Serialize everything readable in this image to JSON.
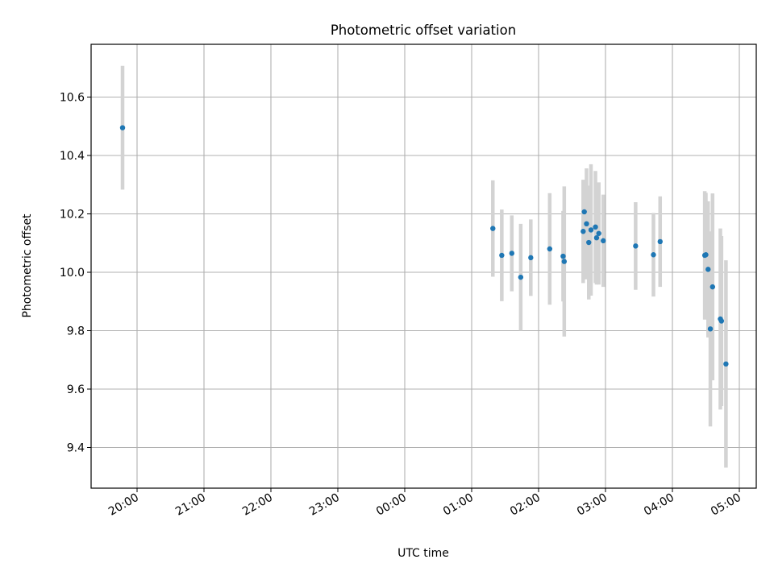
{
  "chart_data": {
    "type": "scatter",
    "title": "Photometric offset variation",
    "xlabel": "UTC time",
    "ylabel": "Photometric offset",
    "grid": true,
    "colors": {
      "points": "#1f77b4",
      "errorbars": "#d3d3d3",
      "grid": "#b0b0b0"
    },
    "x_ticks": [
      "20:00",
      "21:00",
      "22:00",
      "23:00",
      "00:00",
      "01:00",
      "02:00",
      "03:00",
      "04:00",
      "05:00"
    ],
    "y_ticks": [
      "9.4",
      "9.6",
      "9.8",
      "10.0",
      "10.2",
      "10.4",
      "10.6"
    ],
    "points": [
      {
        "t": "19:47",
        "y": 10.495,
        "err": 0.212
      },
      {
        "t": "01:19",
        "y": 10.15,
        "err": 0.165
      },
      {
        "t": "01:27",
        "y": 10.058,
        "err": 0.157
      },
      {
        "t": "01:36",
        "y": 10.065,
        "err": 0.13
      },
      {
        "t": "01:44",
        "y": 9.983,
        "err": 0.183
      },
      {
        "t": "01:53",
        "y": 10.05,
        "err": 0.131
      },
      {
        "t": "02:10",
        "y": 10.08,
        "err": 0.191
      },
      {
        "t": "02:22",
        "y": 10.055,
        "err": 0.155
      },
      {
        "t": "02:23",
        "y": 10.037,
        "err": 0.257
      },
      {
        "t": "02:40",
        "y": 10.14,
        "err": 0.177
      },
      {
        "t": "02:41",
        "y": 10.207,
        "err": 0.107
      },
      {
        "t": "02:43",
        "y": 10.166,
        "err": 0.19
      },
      {
        "t": "02:45",
        "y": 10.102,
        "err": 0.195
      },
      {
        "t": "02:47",
        "y": 10.145,
        "err": 0.225
      },
      {
        "t": "02:51",
        "y": 10.155,
        "err": 0.192
      },
      {
        "t": "02:52",
        "y": 10.118,
        "err": 0.16
      },
      {
        "t": "02:54",
        "y": 10.133,
        "err": 0.175
      },
      {
        "t": "02:58",
        "y": 10.108,
        "err": 0.158
      },
      {
        "t": "03:27",
        "y": 10.09,
        "err": 0.15
      },
      {
        "t": "03:43",
        "y": 10.06,
        "err": 0.143
      },
      {
        "t": "03:49",
        "y": 10.105,
        "err": 0.155
      },
      {
        "t": "04:29",
        "y": 10.058,
        "err": 0.22
      },
      {
        "t": "04:30",
        "y": 10.06,
        "err": 0.212
      },
      {
        "t": "04:32",
        "y": 10.01,
        "err": 0.233
      },
      {
        "t": "04:34",
        "y": 9.806,
        "err": 0.334
      },
      {
        "t": "04:36",
        "y": 9.95,
        "err": 0.32
      },
      {
        "t": "04:43",
        "y": 9.84,
        "err": 0.31
      },
      {
        "t": "04:44",
        "y": 9.833,
        "err": 0.291
      },
      {
        "t": "04:48",
        "y": 9.686,
        "err": 0.355
      }
    ]
  }
}
